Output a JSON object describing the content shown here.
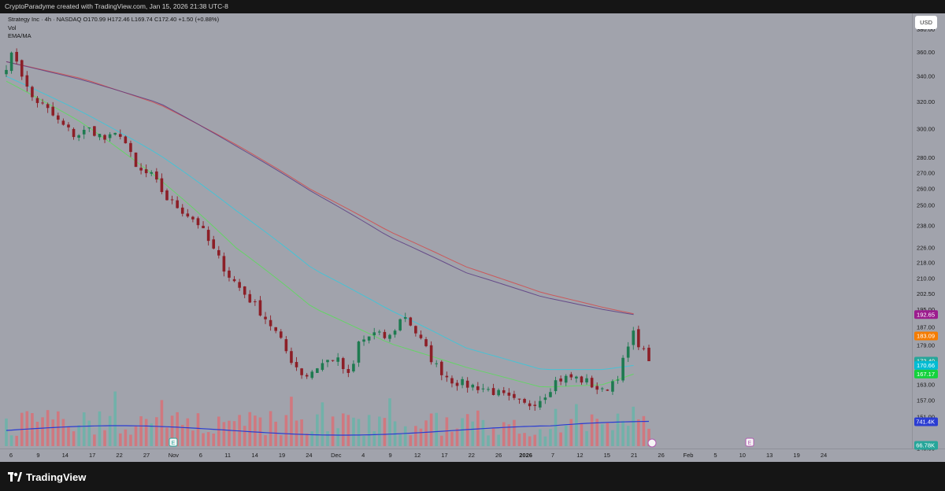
{
  "header": {
    "attribution": "CryptoParadyme created with TradingView.com, Jan 15, 2026 21:38 UTC-8"
  },
  "legend": {
    "symbol_line": "Strategy Inc · 4h · NASDAQ  O170.99  H172.46  L169.74  C172.40  +1.50 (+0.88%)",
    "vol_label": "Vol",
    "ema_label": "EMA/MA"
  },
  "currency_button": "USD",
  "brand": "TradingView",
  "colors": {
    "background": "#a1a3ac",
    "up_candle": "#1e7a50",
    "down_candle": "#8c1f27",
    "ema_red": "#d24b4b",
    "ema_purple": "#5c3c82",
    "ema_cyan": "#37c8dc",
    "ema_green": "#5adc5a",
    "volume_avg": "#2a3cd2",
    "volume_up": "#62b6a8",
    "volume_down": "#e06a70"
  },
  "chart_data": {
    "type": "candlestick",
    "symbol": "Strategy Inc",
    "interval": "4h",
    "exchange": "NASDAQ",
    "ohlc_last": {
      "open": 170.99,
      "high": 172.46,
      "low": 169.74,
      "close": 172.4,
      "change": "+1.50",
      "change_pct": "+0.88%"
    },
    "y_scale": "log",
    "ylim": [
      140,
      395
    ],
    "price_ticks": [
      "380.00",
      "360.00",
      "340.00",
      "320.00",
      "300.00",
      "280.00",
      "270.00",
      "260.00",
      "250.00",
      "238.00",
      "226.00",
      "218.00",
      "210.00",
      "202.50",
      "195.00",
      "187.00",
      "179.00",
      "163.00",
      "157.00",
      "151.00",
      "140.00"
    ],
    "price_labels": [
      {
        "value": 192.65,
        "text": "192.65",
        "color": "#9c1d8e"
      },
      {
        "value": 183.09,
        "text": "183.09",
        "color": "#f57c00"
      },
      {
        "value": 172.4,
        "text": "172.40",
        "color": "#26a69a"
      },
      {
        "value": 170.66,
        "text": "170.66",
        "color": "#00bcd4"
      },
      {
        "value": 167.17,
        "text": "167.17",
        "color": "#14d23c"
      }
    ],
    "volume_labels": [
      {
        "text": "741.4K",
        "color": "#2a3cd2"
      },
      {
        "text": "66.78K",
        "color": "#26a69a"
      }
    ],
    "time_ticks": [
      "6",
      "9",
      "14",
      "17",
      "22",
      "27",
      "Nov",
      "6",
      "11",
      "14",
      "19",
      "24",
      "Dec",
      "4",
      "9",
      "12",
      "17",
      "22",
      "26",
      "2026",
      "7",
      "12",
      "15",
      "21",
      "26",
      "Feb",
      "5",
      "10",
      "13",
      "19",
      "24"
    ],
    "event_markers": [
      "E",
      "E"
    ],
    "close_path": [
      [
        0,
        349
      ],
      [
        1,
        360
      ],
      [
        3,
        325
      ],
      [
        5,
        316
      ],
      [
        7,
        304
      ],
      [
        9,
        295
      ],
      [
        11,
        300
      ],
      [
        13,
        292
      ],
      [
        15,
        297
      ],
      [
        17,
        272
      ],
      [
        19,
        268
      ],
      [
        21,
        254
      ],
      [
        23,
        247
      ],
      [
        25,
        240
      ],
      [
        27,
        225
      ],
      [
        29,
        212
      ],
      [
        31,
        203
      ],
      [
        33,
        195
      ],
      [
        35,
        186
      ],
      [
        37,
        174
      ],
      [
        39,
        166
      ],
      [
        41,
        171
      ],
      [
        43,
        174
      ],
      [
        45,
        165
      ],
      [
        46,
        180
      ],
      [
        48,
        184
      ],
      [
        50,
        182
      ],
      [
        52,
        193
      ],
      [
        54,
        182
      ],
      [
        56,
        171
      ],
      [
        58,
        165
      ],
      [
        60,
        163
      ],
      [
        62,
        162
      ],
      [
        64,
        160
      ],
      [
        66,
        157
      ],
      [
        68,
        155
      ],
      [
        70,
        158
      ],
      [
        72,
        165
      ],
      [
        74,
        166
      ],
      [
        76,
        164
      ],
      [
        78,
        160
      ],
      [
        80,
        167
      ],
      [
        82,
        184
      ],
      [
        83,
        178
      ],
      [
        84,
        172.4
      ]
    ],
    "series": [
      {
        "name": "EMA/MA long (red)",
        "points": [
          [
            0,
            352
          ],
          [
            10,
            338
          ],
          [
            20,
            318
          ],
          [
            30,
            289
          ],
          [
            40,
            259
          ],
          [
            50,
            235
          ],
          [
            60,
            216
          ],
          [
            70,
            203
          ],
          [
            78,
            196
          ],
          [
            82,
            193
          ]
        ]
      },
      {
        "name": "EMA/MA long (purple)",
        "points": [
          [
            0,
            352
          ],
          [
            10,
            337
          ],
          [
            20,
            319
          ],
          [
            30,
            288
          ],
          [
            40,
            258
          ],
          [
            50,
            232
          ],
          [
            60,
            213
          ],
          [
            70,
            201
          ],
          [
            78,
            195
          ],
          [
            82,
            192.65
          ]
        ]
      },
      {
        "name": "EMA/MA mid (cyan)",
        "points": [
          [
            0,
            340
          ],
          [
            10,
            312
          ],
          [
            20,
            282
          ],
          [
            30,
            247
          ],
          [
            40,
            215
          ],
          [
            50,
            195
          ],
          [
            60,
            178
          ],
          [
            70,
            169
          ],
          [
            78,
            169
          ],
          [
            82,
            170.66
          ]
        ]
      },
      {
        "name": "EMA/MA short (green)",
        "points": [
          [
            0,
            336
          ],
          [
            10,
            304
          ],
          [
            20,
            266
          ],
          [
            30,
            226
          ],
          [
            40,
            196
          ],
          [
            50,
            180
          ],
          [
            60,
            170
          ],
          [
            70,
            162
          ],
          [
            78,
            163
          ],
          [
            82,
            167.17
          ]
        ]
      }
    ]
  }
}
